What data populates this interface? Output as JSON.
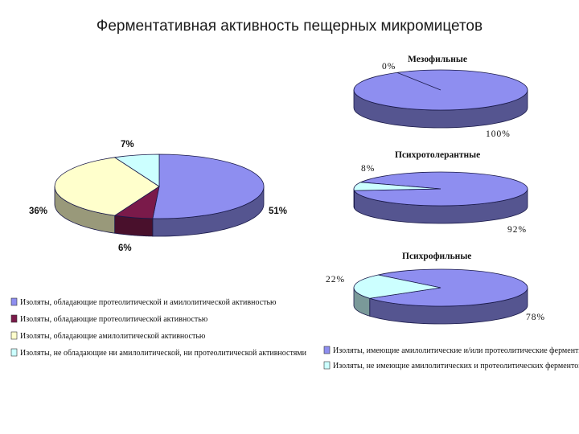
{
  "slide_title": "Ферментативная активность пещерных микромицетов",
  "colors": {
    "blue": "#8e8ef0",
    "cream": "#ffffcc",
    "maroon": "#7a1a4a",
    "cyan": "#ccffff",
    "olive": "#9a9a6a",
    "edge": "#1a1a4a"
  },
  "chart_data": [
    {
      "type": "pie",
      "title": "",
      "slices": [
        {
          "name": "Изоляты, обладающие протеолитической и амилолитической активностью",
          "value": 51,
          "label": "51%",
          "color": "#8e8ef0"
        },
        {
          "name": "Изоляты, обладающие протеолитической активностью",
          "value": 6,
          "label": "6%",
          "color": "#7a1a4a"
        },
        {
          "name": "Изоляты, обладающие амилолитической активностью",
          "value": 36,
          "label": "36%",
          "color": "#ffffcc"
        },
        {
          "name": "Изоляты, не обладающие ни амилолитической, ни протеолитической активностями",
          "value": 7,
          "label": "7%",
          "color": "#ccffff"
        }
      ]
    },
    {
      "type": "pie",
      "title": "Мезофильные",
      "slices": [
        {
          "name": "Изоляты, имеющие амилолитические и/или протеолитические ферменты",
          "value": 100,
          "label": "100%",
          "color": "#8e8ef0"
        },
        {
          "name": "Изоляты, не имеющие амилолитических и протеолитических ферментов",
          "value": 0,
          "label": "0%",
          "color": "#ccffff"
        }
      ]
    },
    {
      "type": "pie",
      "title": "Психротолерантные",
      "slices": [
        {
          "name": "Изоляты, имеющие амилолитические и/или протеолитические ферменты",
          "value": 92,
          "label": "92%",
          "color": "#8e8ef0"
        },
        {
          "name": "Изоляты, не имеющие амилолитических и протеолитических ферментов",
          "value": 8,
          "label": "8%",
          "color": "#ccffff"
        }
      ]
    },
    {
      "type": "pie",
      "title": "Психрофильные",
      "slices": [
        {
          "name": "Изоляты, имеющие амилолитические и/или протеолитические ферменты",
          "value": 78,
          "label": "78%",
          "color": "#8e8ef0"
        },
        {
          "name": "Изоляты, не имеющие амилолитических и протеолитических ферментов",
          "value": 22,
          "label": "22%",
          "color": "#ccffff"
        }
      ]
    }
  ],
  "legend_left": [
    {
      "label": "Изоляты, обладающие протеолитической и амилолитической активностью",
      "color": "#8e8ef0"
    },
    {
      "label": "Изоляты, обладающие протеолитической активностью",
      "color": "#7a1a4a"
    },
    {
      "label": "Изоляты, обладающие амилолитической активностью",
      "color": "#ffffcc"
    },
    {
      "label": "Изоляты, не обладающие ни амилолитической, ни протеолитической активностями",
      "color": "#ccffff"
    }
  ],
  "legend_right": [
    {
      "label": "Изоляты, имеющие амилолитические и/или протеолитические ферменты",
      "color": "#8e8ef0"
    },
    {
      "label": "Изоляты, не имеющие амилолитических и протеолитических ферментов",
      "color": "#ccffff"
    }
  ]
}
